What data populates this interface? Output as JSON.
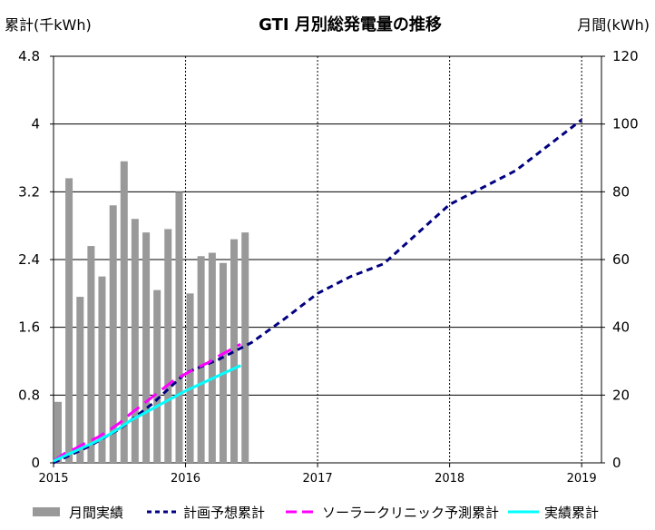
{
  "chart_data": {
    "type": "bar+line",
    "title": "GTI 月別総発電量の推移",
    "left_axis": {
      "label": "累計(千kWh)",
      "min": 0,
      "max": 4.8,
      "step": 0.8,
      "tick_labels": [
        "0",
        "0.8",
        "1.6",
        "2.4",
        "3.2",
        "4",
        "4.8"
      ]
    },
    "right_axis": {
      "label": "月間(kWh)",
      "min": 0,
      "max": 120,
      "step": 20,
      "tick_labels": [
        "0",
        "20",
        "40",
        "60",
        "80",
        "100",
        "120"
      ]
    },
    "x_axis": {
      "min": 2015.0,
      "max": 2019.15,
      "tick_labels": [
        "2015",
        "2016",
        "2017",
        "2018",
        "2019"
      ],
      "tick_values": [
        2015,
        2016,
        2017,
        2018,
        2019
      ]
    },
    "grid": true,
    "legend_position": "bottom",
    "series": [
      {
        "name": "月間実績",
        "kind": "bar",
        "axis": "right",
        "color": "#999999",
        "x": [
          2015.0,
          2015.083,
          2015.167,
          2015.25,
          2015.333,
          2015.417,
          2015.5,
          2015.583,
          2015.667,
          2015.75,
          2015.833,
          2015.917,
          2016.0,
          2016.083,
          2016.167,
          2016.25,
          2016.333,
          2016.417
        ],
        "values": [
          18,
          84,
          49,
          64,
          55,
          76,
          89,
          72,
          68,
          51,
          69,
          80,
          50,
          61,
          62,
          59,
          66,
          68
        ]
      },
      {
        "name": "計画予想累計",
        "kind": "line",
        "style": "dashed",
        "axis": "left",
        "color": "#000080",
        "x": [
          2015.0,
          2015.25,
          2015.5,
          2015.75,
          2016.0,
          2016.25,
          2016.5,
          2016.75,
          2017.0,
          2017.25,
          2017.5,
          2017.75,
          2018.0,
          2018.25,
          2018.5,
          2018.75,
          2019.0
        ],
        "values": [
          0,
          0.18,
          0.4,
          0.7,
          1.06,
          1.22,
          1.42,
          1.7,
          2.0,
          2.2,
          2.35,
          2.7,
          3.05,
          3.25,
          3.45,
          3.75,
          4.05
        ]
      },
      {
        "name": "ソーラークリニック予測累計",
        "kind": "line",
        "style": "dashed",
        "axis": "left",
        "color": "#ff00ff",
        "x": [
          2015.0,
          2015.083,
          2015.167,
          2015.25,
          2015.333,
          2015.417,
          2015.5,
          2015.583,
          2015.667,
          2015.75,
          2015.833,
          2015.917,
          2016.0,
          2016.083,
          2016.167,
          2016.25,
          2016.333,
          2016.417
        ],
        "values": [
          0.02,
          0.11,
          0.17,
          0.24,
          0.3,
          0.38,
          0.47,
          0.58,
          0.68,
          0.78,
          0.88,
          0.98,
          1.05,
          1.12,
          1.18,
          1.26,
          1.33,
          1.4
        ]
      },
      {
        "name": "実績累計",
        "kind": "line",
        "style": "solid",
        "axis": "left",
        "color": "#00ffff",
        "x": [
          2015.0,
          2015.083,
          2015.167,
          2015.25,
          2015.333,
          2015.417,
          2015.5,
          2015.583,
          2015.667,
          2015.75,
          2015.833,
          2015.917,
          2016.0,
          2016.083,
          2016.167,
          2016.25,
          2016.333,
          2016.417
        ],
        "values": [
          0.02,
          0.08,
          0.14,
          0.2,
          0.26,
          0.33,
          0.41,
          0.5,
          0.57,
          0.64,
          0.71,
          0.78,
          0.85,
          0.91,
          0.97,
          1.03,
          1.09,
          1.15
        ]
      }
    ]
  }
}
